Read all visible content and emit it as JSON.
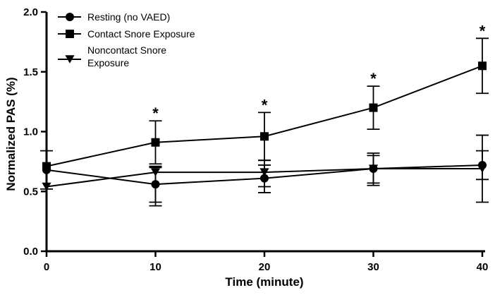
{
  "chart_data": {
    "type": "line",
    "title": "",
    "xlabel": "Time (minute)",
    "ylabel": "Normalized PAS (%)",
    "x": [
      0,
      10,
      20,
      30,
      40
    ],
    "xlim": [
      0,
      40
    ],
    "ylim": [
      0,
      2.0
    ],
    "x_ticks": [
      "0",
      "10",
      "20",
      "30",
      "40"
    ],
    "y_ticks": [
      "0.0",
      "0.5",
      "1.0",
      "1.5",
      "2.0"
    ],
    "grid": false,
    "legend_position": "top-left",
    "series": [
      {
        "name": "Resting (no VAED)",
        "marker": "circle",
        "values": [
          0.68,
          0.56,
          0.61,
          0.69,
          0.72
        ],
        "err_upper": [
          0.84,
          0.7,
          0.76,
          0.82,
          0.97
        ],
        "err_lower": [
          0.52,
          0.38,
          0.49,
          0.57,
          0.41
        ]
      },
      {
        "name": "Contact Snore Exposure",
        "marker": "square",
        "values": [
          0.71,
          0.91,
          0.96,
          1.2,
          1.55
        ],
        "err_upper": [
          0.71,
          1.09,
          1.16,
          1.38,
          1.78
        ],
        "err_lower": [
          0.71,
          0.73,
          0.76,
          1.02,
          1.32
        ]
      },
      {
        "name": "Noncontact Snore Exposure",
        "marker": "triangle-down",
        "values": [
          0.54,
          0.66,
          0.66,
          0.69,
          0.69
        ],
        "err_upper": [
          0.54,
          0.71,
          0.72,
          0.8,
          0.84
        ],
        "err_lower": [
          0.54,
          0.41,
          0.54,
          0.55,
          0.6
        ]
      }
    ],
    "annotations": [
      {
        "x": 10,
        "text": "*"
      },
      {
        "x": 20,
        "text": "*"
      },
      {
        "x": 30,
        "text": "*"
      },
      {
        "x": 40,
        "text": "*"
      }
    ]
  }
}
